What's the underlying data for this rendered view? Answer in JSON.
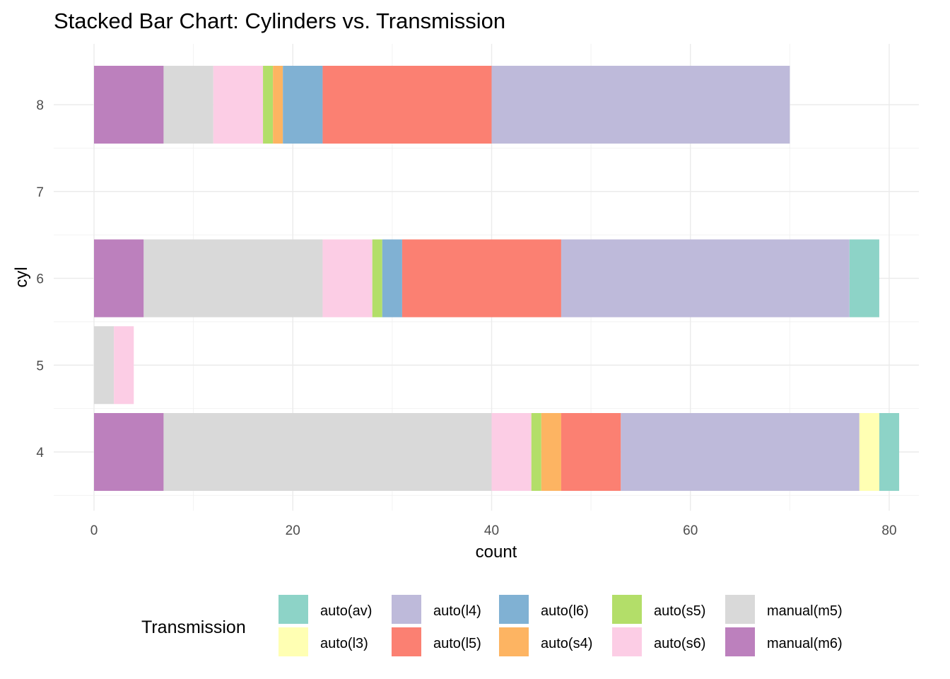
{
  "chart_data": {
    "type": "bar",
    "orientation": "horizontal",
    "stacked": true,
    "title": "Stacked Bar Chart: Cylinders vs. Transmission",
    "xlabel": "count",
    "ylabel": "cyl",
    "xlim": [
      0,
      80
    ],
    "x_ticks": [
      "0",
      "20",
      "40",
      "60",
      "80"
    ],
    "y_ticks": [
      "4",
      "5",
      "6",
      "7",
      "8"
    ],
    "grid": true,
    "categories": [
      "4",
      "5",
      "6",
      "8"
    ],
    "legend": {
      "title": "Transmission",
      "position": "bottom"
    },
    "series": [
      {
        "name": "auto(av)",
        "color": "#8DD3C7",
        "values": [
          2,
          0,
          3,
          0
        ]
      },
      {
        "name": "auto(l3)",
        "color": "#FFFFB3",
        "values": [
          2,
          0,
          0,
          0
        ]
      },
      {
        "name": "auto(l4)",
        "color": "#BEBADA",
        "values": [
          24,
          0,
          29,
          30
        ]
      },
      {
        "name": "auto(l5)",
        "color": "#FB8072",
        "values": [
          6,
          0,
          16,
          17
        ]
      },
      {
        "name": "auto(l6)",
        "color": "#80B1D3",
        "values": [
          0,
          0,
          2,
          4
        ]
      },
      {
        "name": "auto(s4)",
        "color": "#FDB462",
        "values": [
          2,
          0,
          0,
          1
        ]
      },
      {
        "name": "auto(s5)",
        "color": "#B3DE69",
        "values": [
          1,
          0,
          1,
          1
        ]
      },
      {
        "name": "auto(s6)",
        "color": "#FCCDE5",
        "values": [
          4,
          2,
          5,
          5
        ]
      },
      {
        "name": "manual(m5)",
        "color": "#D9D9D9",
        "values": [
          33,
          2,
          18,
          5
        ]
      },
      {
        "name": "manual(m6)",
        "color": "#BC80BD",
        "values": [
          7,
          0,
          5,
          7
        ]
      }
    ]
  }
}
